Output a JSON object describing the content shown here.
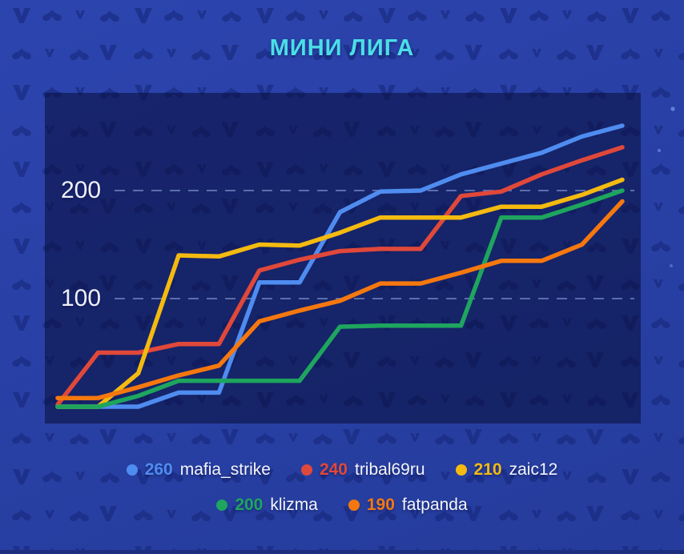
{
  "title": "МИНИ ЛИГА",
  "theme": {
    "background": "#2a41a6",
    "panel_overlay": "rgba(8,12,56,0.55)",
    "title_color": "#4adfe7",
    "text_color": "#f3f5fb",
    "grid_color": "rgba(148,173,224,0.55)",
    "pattern_motif_color": "#16267c",
    "bottom_strip_color": "#1e2e7e"
  },
  "chart_data": {
    "type": "line",
    "title": "МИНИ ЛИГА",
    "x_labels": [],
    "x_points": 15,
    "ylim": [
      0,
      290
    ],
    "yticks": [
      200,
      100
    ],
    "ytick_labels": [
      "200",
      "100"
    ],
    "grid": "horizontal-dashed",
    "legend_position": "bottom",
    "series": [
      {
        "name": "mafia_strike",
        "legend_value": "260",
        "color": "#4f8cf0",
        "values": [
          0,
          0,
          0,
          13,
          13,
          115,
          115,
          180,
          199,
          200,
          215,
          225,
          235,
          250,
          260
        ]
      },
      {
        "name": "tribal69ru",
        "legend_value": "240",
        "color": "#e0483a",
        "values": [
          2,
          50,
          50,
          58,
          58,
          126,
          136,
          144,
          146,
          146,
          195,
          199,
          215,
          228,
          240
        ]
      },
      {
        "name": "zaic12",
        "legend_value": "210",
        "color": "#f4ba10",
        "values": [
          0,
          0,
          31,
          140,
          139,
          150,
          149,
          161,
          175,
          175,
          175,
          185,
          185,
          196,
          210
        ]
      },
      {
        "name": "klizma",
        "legend_value": "200",
        "color": "#1ea55e",
        "values": [
          0,
          0,
          10,
          24,
          24,
          24,
          24,
          74,
          75,
          75,
          75,
          175,
          175,
          187,
          200
        ]
      },
      {
        "name": "fatpanda",
        "legend_value": "190",
        "color": "#f5780f",
        "values": [
          8,
          8,
          18,
          29,
          38,
          79,
          89,
          98,
          114,
          114,
          124,
          135,
          135,
          150,
          190
        ]
      }
    ],
    "legend_rows": [
      [
        0,
        1,
        2
      ],
      [
        3,
        4
      ]
    ]
  }
}
